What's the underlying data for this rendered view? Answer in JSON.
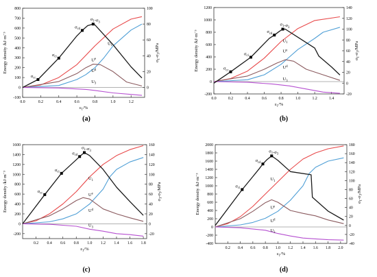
{
  "figure": {
    "panels": [
      {
        "id": "a",
        "label": "(a)"
      },
      {
        "id": "b",
        "label": "(b)"
      },
      {
        "id": "c",
        "label": "(c)"
      },
      {
        "id": "d",
        "label": "(d)"
      }
    ]
  },
  "axis_text": {
    "xlabel": "ε1/%",
    "ylabel_left": "Energy density /kJ·m⁻³",
    "ylabel_right": "σ1-σ3/MPa"
  },
  "colors": {
    "stress": "#1a1a1a",
    "U1": "#e8494a",
    "Ue": "#4f9fd6",
    "Ud": "#8a5a5e",
    "U3": "#b54fd0"
  },
  "chart_data": [
    {
      "type": "line",
      "panel": "(a)",
      "xlabel": "ε1/%",
      "ylabel": "Energy density /kJ·m⁻³",
      "y2label": "σ1-σ3/MPa",
      "xlim": [
        0,
        1.35
      ],
      "ylim": [
        -100,
        800
      ],
      "y2lim": [
        -12.5,
        100
      ],
      "xticks": [
        0.0,
        0.2,
        0.4,
        0.6,
        0.8,
        1.0,
        1.2
      ],
      "yticks": [
        -100,
        0,
        100,
        200,
        300,
        400,
        500,
        600,
        700,
        800
      ],
      "y2ticks": [
        0,
        20,
        40,
        60,
        80,
        100
      ],
      "series": [
        {
          "name": "U1",
          "axis": "left",
          "x": [
            0,
            0.2,
            0.4,
            0.6,
            0.8,
            1.0,
            1.2,
            1.32
          ],
          "values": [
            0,
            25,
            100,
            230,
            420,
            590,
            690,
            715
          ]
        },
        {
          "name": "Ue",
          "axis": "left",
          "x": [
            0,
            0.4,
            0.6,
            0.7,
            0.8,
            0.9,
            1.0,
            1.2,
            1.32
          ],
          "values": [
            0,
            20,
            80,
            130,
            200,
            300,
            420,
            580,
            640
          ]
        },
        {
          "name": "Ud",
          "axis": "left",
          "x": [
            0,
            0.4,
            0.6,
            0.7,
            0.78,
            0.86,
            1.0,
            1.15,
            1.32
          ],
          "values": [
            0,
            60,
            140,
            200,
            235,
            230,
            160,
            55,
            15
          ]
        },
        {
          "name": "U3",
          "axis": "left",
          "x": [
            0,
            0.4,
            0.7,
            0.8,
            1.0,
            1.2,
            1.32
          ],
          "values": [
            0,
            -5,
            -20,
            -30,
            -55,
            -70,
            -80
          ]
        },
        {
          "name": "σ1-σ3",
          "axis": "right",
          "x": [
            0,
            0.17,
            0.4,
            0.6,
            0.66,
            0.72,
            0.78,
            0.8,
            1.0,
            1.2,
            1.32
          ],
          "values": [
            0,
            10,
            37,
            65,
            72,
            78,
            80,
            79,
            54,
            26,
            12
          ]
        }
      ],
      "annotations": [
        {
          "text": "σ1-σ3",
          "x": 0.78,
          "axis": "right",
          "y": 80
        },
        {
          "text": "σcd",
          "x": 0.66,
          "axis": "right",
          "y": 72
        },
        {
          "text": "σci",
          "x": 0.4,
          "axis": "right",
          "y": 37
        },
        {
          "text": "σcc",
          "x": 0.17,
          "axis": "right",
          "y": 10
        },
        {
          "text": "U1",
          "x": 0.94,
          "axis": "left",
          "y": 430
        },
        {
          "text": "Ue",
          "x": 0.76,
          "axis": "left",
          "y": 265
        },
        {
          "text": "Ud",
          "x": 0.76,
          "axis": "left",
          "y": 155
        },
        {
          "text": "U3",
          "x": 0.76,
          "axis": "left",
          "y": 45
        }
      ]
    },
    {
      "type": "line",
      "panel": "(b)",
      "xlabel": "ε1/%",
      "ylabel": "Energy density /kJ·m⁻³",
      "y2label": "σ1-σ3/MPa",
      "xlim": [
        0,
        1.55
      ],
      "ylim": [
        -200,
        1200
      ],
      "y2lim": [
        -20,
        140
      ],
      "xticks": [
        0.0,
        0.2,
        0.4,
        0.6,
        0.8,
        1.0,
        1.2,
        1.4
      ],
      "yticks": [
        -200,
        0,
        200,
        400,
        600,
        800,
        1000,
        1200
      ],
      "y2ticks": [
        -20,
        0,
        20,
        40,
        60,
        80,
        100,
        120,
        140
      ],
      "series": [
        {
          "name": "U1",
          "axis": "left",
          "x": [
            0,
            0.2,
            0.4,
            0.6,
            0.8,
            1.0,
            1.2,
            1.5
          ],
          "values": [
            0,
            50,
            170,
            380,
            650,
            860,
            990,
            1050
          ]
        },
        {
          "name": "Ue",
          "axis": "left",
          "x": [
            0,
            0.4,
            0.6,
            0.8,
            0.9,
            1.0,
            1.2,
            1.3,
            1.5
          ],
          "values": [
            0,
            30,
            110,
            280,
            400,
            520,
            700,
            800,
            880
          ]
        },
        {
          "name": "Ud",
          "axis": "left",
          "x": [
            0,
            0.4,
            0.6,
            0.75,
            0.85,
            0.95,
            1.1,
            1.3,
            1.5
          ],
          "values": [
            0,
            90,
            200,
            300,
            355,
            330,
            200,
            110,
            20
          ]
        },
        {
          "name": "U3",
          "axis": "left",
          "x": [
            0,
            0.4,
            0.7,
            0.9,
            1.1,
            1.3,
            1.5
          ],
          "values": [
            0,
            -10,
            -40,
            -70,
            -120,
            -170,
            -190
          ]
        },
        {
          "name": "σ1-σ3",
          "axis": "right",
          "x": [
            0,
            0.2,
            0.44,
            0.66,
            0.72,
            0.78,
            0.82,
            0.85,
            1.0,
            1.2,
            1.25,
            1.4,
            1.5
          ],
          "values": [
            0,
            21,
            48,
            83,
            89,
            96,
            100,
            100,
            85,
            65,
            50,
            30,
            15
          ]
        }
      ],
      "annotations": [
        {
          "text": "σ1-σ3",
          "x": 0.82,
          "axis": "right",
          "y": 100
        },
        {
          "text": "σcd",
          "x": 0.72,
          "axis": "right",
          "y": 89
        },
        {
          "text": "σci",
          "x": 0.44,
          "axis": "right",
          "y": 48
        },
        {
          "text": "σcc",
          "x": 0.2,
          "axis": "right",
          "y": 21
        },
        {
          "text": "U1",
          "x": 0.82,
          "axis": "left",
          "y": 640
        },
        {
          "text": "Ue",
          "x": 0.82,
          "axis": "left",
          "y": 470
        },
        {
          "text": "Ud",
          "x": 0.82,
          "axis": "left",
          "y": 210
        },
        {
          "text": "U3",
          "x": 0.82,
          "axis": "left",
          "y": 20
        }
      ]
    },
    {
      "type": "line",
      "panel": "(c)",
      "xlabel": "ε1/%",
      "ylabel": "Energy density /kJ·m⁻³",
      "y2label": "σ1-σ3/MPa",
      "xlim": [
        0,
        1.85
      ],
      "ylim": [
        -300,
        1600
      ],
      "y2lim": [
        -30,
        160
      ],
      "xticks": [
        0.2,
        0.4,
        0.6,
        0.8,
        1.0,
        1.2,
        1.4,
        1.6,
        1.8
      ],
      "yticks": [
        -200,
        0,
        200,
        400,
        600,
        800,
        1000,
        1200,
        1400,
        1600
      ],
      "y2ticks": [
        -20,
        0,
        20,
        40,
        60,
        80,
        100,
        120,
        140,
        160
      ],
      "series": [
        {
          "name": "U1",
          "axis": "left",
          "x": [
            0,
            0.2,
            0.4,
            0.6,
            0.8,
            1.0,
            1.2,
            1.4,
            1.6,
            1.8
          ],
          "values": [
            0,
            60,
            200,
            400,
            650,
            950,
            1200,
            1380,
            1500,
            1580
          ]
        },
        {
          "name": "Ue",
          "axis": "left",
          "x": [
            0,
            0.4,
            0.6,
            0.8,
            1.0,
            1.2,
            1.3,
            1.4,
            1.6,
            1.8
          ],
          "values": [
            0,
            40,
            100,
            200,
            400,
            700,
            950,
            1100,
            1250,
            1340
          ]
        },
        {
          "name": "Ud",
          "axis": "left",
          "x": [
            0,
            0.4,
            0.6,
            0.8,
            0.9,
            1.0,
            1.2,
            1.4,
            1.6,
            1.8
          ],
          "values": [
            0,
            160,
            300,
            470,
            530,
            500,
            300,
            200,
            120,
            50
          ]
        },
        {
          "name": "U3",
          "axis": "left",
          "x": [
            0,
            0.4,
            0.8,
            1.0,
            1.2,
            1.4,
            1.6,
            1.8
          ],
          "values": [
            0,
            -10,
            -50,
            -110,
            -150,
            -200,
            -220,
            -250
          ]
        },
        {
          "name": "σ1-σ3",
          "axis": "right",
          "x": [
            0,
            0.33,
            0.58,
            0.78,
            0.85,
            0.92,
            1.0,
            1.2,
            1.4,
            1.6,
            1.8
          ],
          "values": [
            0,
            59,
            102,
            127,
            136,
            144,
            138,
            110,
            74,
            45,
            17
          ]
        }
      ],
      "annotations": [
        {
          "text": "σ1-σ3",
          "x": 0.92,
          "axis": "right",
          "y": 144
        },
        {
          "text": "σcd",
          "x": 0.85,
          "axis": "right",
          "y": 136
        },
        {
          "text": "σci",
          "x": 0.58,
          "axis": "right",
          "y": 102
        },
        {
          "text": "σcc",
          "x": 0.33,
          "axis": "right",
          "y": 59
        },
        {
          "text": "U1",
          "x": 0.98,
          "axis": "left",
          "y": 890
        },
        {
          "text": "Ue",
          "x": 0.98,
          "axis": "left",
          "y": 560
        },
        {
          "text": "Ud",
          "x": 0.98,
          "axis": "left",
          "y": 240
        },
        {
          "text": "U3",
          "x": 0.98,
          "axis": "left",
          "y": -60
        }
      ]
    },
    {
      "type": "line",
      "panel": "(d)",
      "xlabel": "ε1/%",
      "ylabel": "Energy density /kJ·m⁻³",
      "y2label": "σ1-σ3/MPa",
      "xlim": [
        0,
        2.1
      ],
      "ylim": [
        -400,
        2000
      ],
      "y2lim": [
        -40,
        180
      ],
      "xticks": [
        0.2,
        0.4,
        0.6,
        0.8,
        1.0,
        1.2,
        1.4,
        1.6,
        1.8,
        2.0
      ],
      "yticks": [
        -400,
        -200,
        0,
        200,
        400,
        600,
        800,
        1000,
        1200,
        1400,
        1600,
        1800,
        2000
      ],
      "y2ticks": [
        -40,
        -20,
        0,
        20,
        40,
        60,
        80,
        100,
        120,
        140,
        160,
        180
      ],
      "series": [
        {
          "name": "U1",
          "axis": "left",
          "x": [
            0,
            0.2,
            0.4,
            0.6,
            0.8,
            1.0,
            1.2,
            1.4,
            1.6,
            1.8,
            2.05
          ],
          "values": [
            0,
            80,
            250,
            500,
            800,
            1100,
            1400,
            1650,
            1800,
            1900,
            1970
          ]
        },
        {
          "name": "Ue",
          "axis": "left",
          "x": [
            0,
            0.4,
            0.6,
            0.8,
            1.0,
            1.2,
            1.4,
            1.5,
            1.6,
            1.8,
            2.05
          ],
          "values": [
            0,
            50,
            110,
            210,
            380,
            650,
            1000,
            1300,
            1450,
            1600,
            1680
          ]
        },
        {
          "name": "Ud",
          "axis": "left",
          "x": [
            0,
            0.4,
            0.6,
            0.8,
            0.9,
            1.0,
            1.2,
            1.4,
            1.6,
            1.8,
            2.05
          ],
          "values": [
            0,
            200,
            380,
            590,
            660,
            600,
            400,
            330,
            270,
            170,
            80
          ]
        },
        {
          "name": "U3",
          "axis": "left",
          "x": [
            0,
            0.4,
            0.8,
            1.0,
            1.2,
            1.4,
            1.6,
            1.8,
            2.05
          ],
          "values": [
            0,
            -20,
            -80,
            -160,
            -220,
            -270,
            -290,
            -310,
            -320
          ]
        },
        {
          "name": "σ1-σ3",
          "axis": "right",
          "x": [
            0,
            0.43,
            0.6,
            0.7,
            0.76,
            0.82,
            0.9,
            1.0,
            1.2,
            1.53,
            1.55,
            1.8,
            2.05
          ],
          "values": [
            0,
            80,
            109,
            126,
            137,
            146,
            155,
            145,
            120,
            113,
            63,
            32,
            12
          ]
        }
      ],
      "annotations": [
        {
          "text": "σ1-σ3",
          "x": 0.9,
          "axis": "right",
          "y": 155
        },
        {
          "text": "σcd",
          "x": 0.76,
          "axis": "right",
          "y": 137
        },
        {
          "text": "σci",
          "x": 0.43,
          "axis": "right",
          "y": 80
        },
        {
          "text": "U1",
          "x": 0.88,
          "axis": "left",
          "y": 1130
        },
        {
          "text": "Ue",
          "x": 0.88,
          "axis": "left",
          "y": 440
        },
        {
          "text": "Ud",
          "x": 0.88,
          "axis": "left",
          "y": 120
        },
        {
          "text": "U3",
          "x": 0.88,
          "axis": "left",
          "y": -120
        }
      ]
    }
  ]
}
